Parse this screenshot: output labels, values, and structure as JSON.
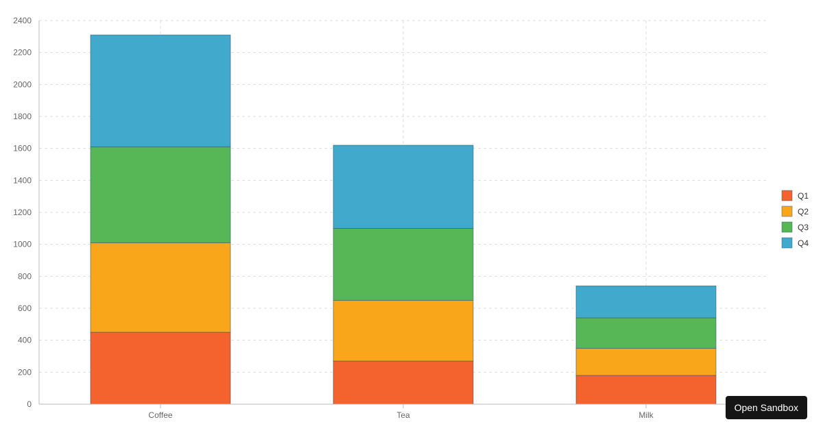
{
  "chart_data": {
    "type": "bar",
    "stacked": true,
    "categories": [
      "Coffee",
      "Tea",
      "Milk"
    ],
    "series": [
      {
        "name": "Q1",
        "values": [
          450,
          270,
          180
        ],
        "color": "#f4622e"
      },
      {
        "name": "Q2",
        "values": [
          560,
          380,
          170
        ],
        "color": "#f9a61b"
      },
      {
        "name": "Q3",
        "values": [
          600,
          450,
          190
        ],
        "color": "#57b757"
      },
      {
        "name": "Q4",
        "values": [
          700,
          520,
          200
        ],
        "color": "#40a9cc"
      }
    ],
    "ylim": [
      0,
      2400
    ],
    "yticks": [
      0,
      200,
      400,
      600,
      800,
      1000,
      1200,
      1400,
      1600,
      1800,
      2000,
      2200,
      2400
    ],
    "grid": true,
    "legend_position": "right",
    "title": "",
    "xlabel": "",
    "ylabel": ""
  },
  "toolbar": {
    "sandbox_label": "Open Sandbox"
  }
}
